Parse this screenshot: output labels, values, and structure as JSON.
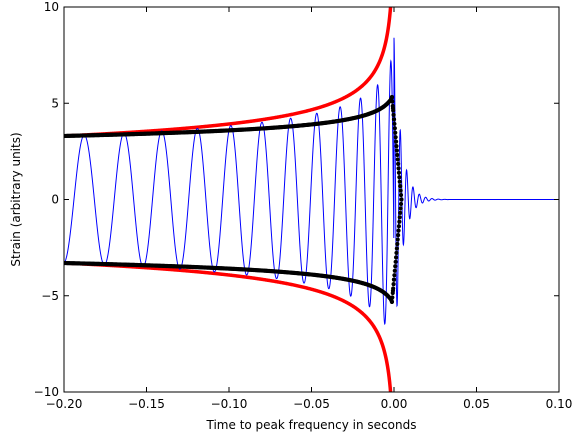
{
  "chart_data": {
    "type": "line",
    "title": "",
    "xlabel": "Time to peak frequency in seconds",
    "ylabel": "Strain (arbitrary units)",
    "xlim": [
      -0.2,
      0.1
    ],
    "ylim": [
      -10,
      10
    ],
    "x_ticks": [
      -0.2,
      -0.15,
      -0.1,
      -0.05,
      0.0,
      0.05,
      0.1
    ],
    "x_tick_labels": [
      "−0.20",
      "−0.15",
      "−0.10",
      "−0.05",
      "0.00",
      "0.05",
      "0.10"
    ],
    "y_ticks": [
      -10,
      -5,
      0,
      5,
      10
    ],
    "y_tick_labels": [
      "−10",
      "−5",
      "0",
      "5",
      "10"
    ],
    "grid": false,
    "legend": "none",
    "series": [
      {
        "style": "thin line",
        "color": "#0000ff",
        "description_of_shape": "chirp waveform: oscillation with increasing frequency and amplitude, peaking near t=0 then ringing down to 0",
        "x": [
          -0.2,
          -0.19,
          -0.173,
          -0.157,
          -0.14,
          -0.124,
          -0.108,
          -0.092,
          -0.077,
          -0.062,
          -0.048,
          -0.035,
          -0.024,
          -0.014,
          -0.007,
          -0.002,
          0.0,
          0.003,
          0.007,
          0.012,
          0.02,
          0.03,
          0.05,
          0.1
        ],
        "values": [
          1.5,
          -3.3,
          3.3,
          -3.35,
          3.45,
          -3.5,
          3.6,
          -3.7,
          3.85,
          -4.0,
          4.2,
          -4.45,
          4.8,
          -5.2,
          5.8,
          -6.3,
          8.4,
          -7.5,
          3.0,
          -1.2,
          0.3,
          0.0,
          0.0,
          0.0
        ]
      },
      {
        "style": "thick line",
        "color": "#ff0000",
        "description_of_shape": "upper and lower envelopes diverging toward t=0",
        "x": [
          -0.2,
          -0.15,
          -0.1,
          -0.05,
          -0.03,
          -0.015,
          -0.007,
          -0.003,
          -0.001
        ],
        "values": [
          3.3,
          3.5,
          3.8,
          4.5,
          5.2,
          6.3,
          7.6,
          9.0,
          10.0
        ]
      },
      {
        "style": "dots",
        "color": "#000000",
        "description_of_shape": "upper and lower envelopes reaching about 5.5 near t=0 then dropping",
        "x": [
          -0.2,
          -0.15,
          -0.1,
          -0.05,
          -0.03,
          -0.015,
          -0.005,
          -0.002,
          -0.001,
          0.0,
          0.002,
          0.004
        ],
        "values": [
          3.3,
          3.5,
          3.8,
          4.3,
          4.7,
          5.1,
          5.5,
          5.6,
          5.4,
          3.0,
          1.2,
          0.0
        ]
      }
    ]
  }
}
